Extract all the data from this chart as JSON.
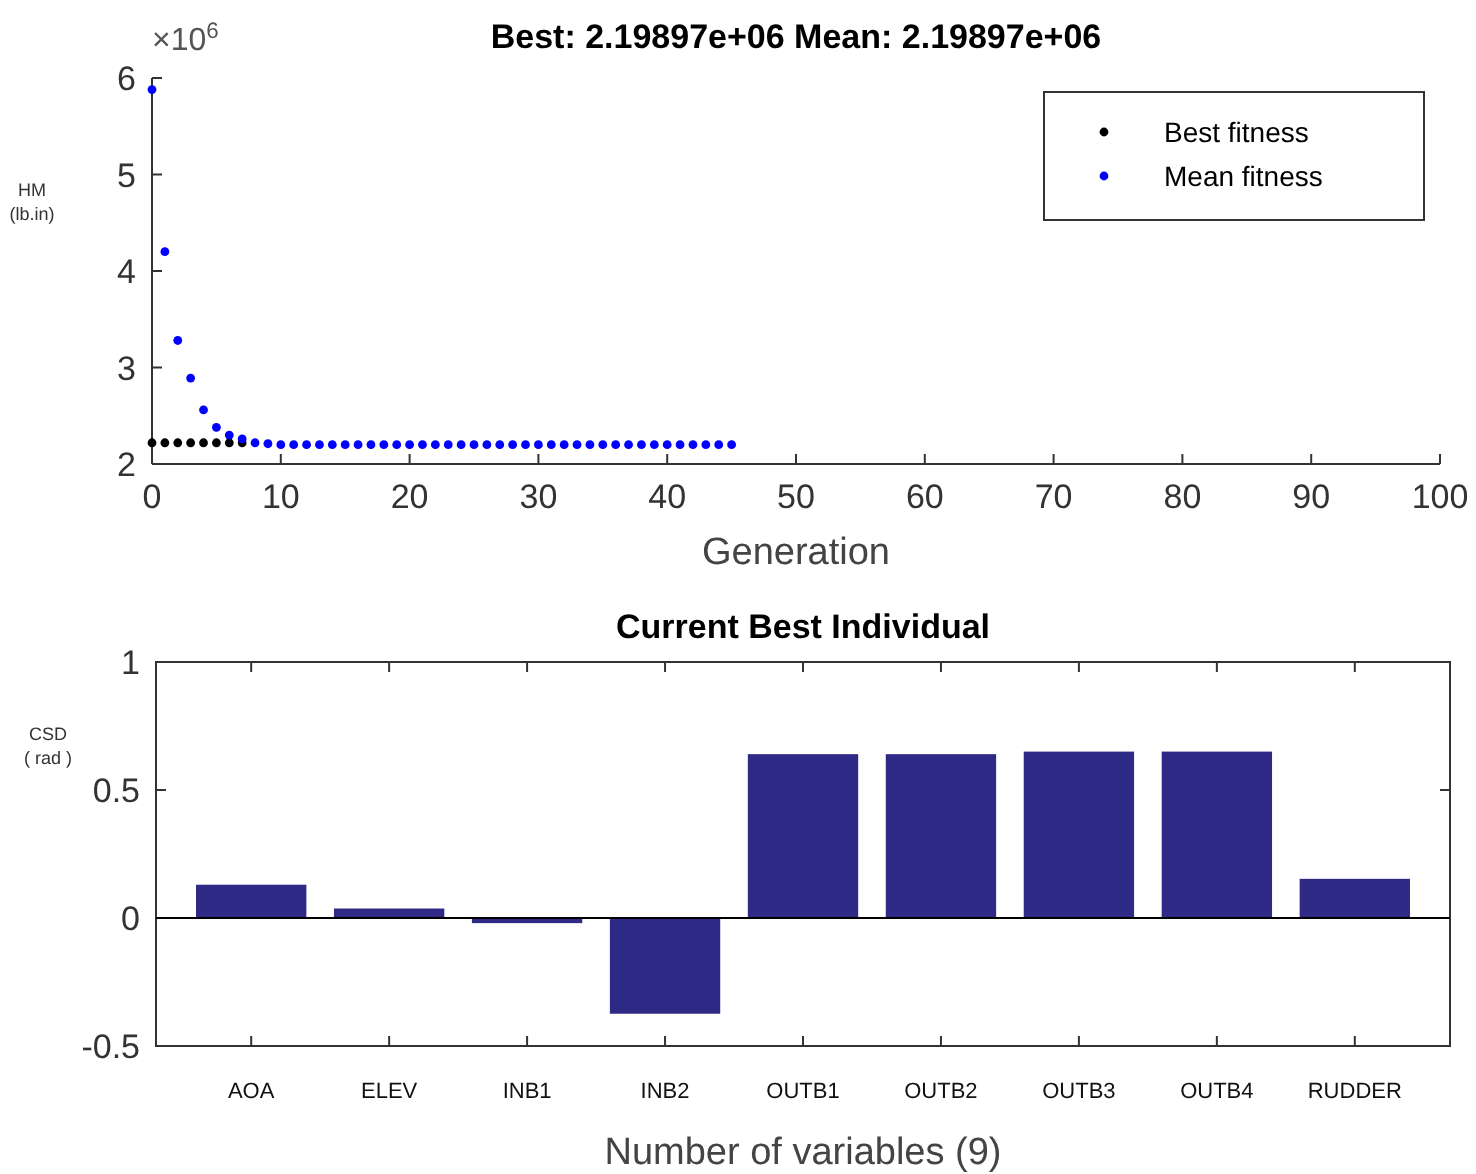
{
  "chart_data": [
    {
      "type": "scatter",
      "title": "Best: 2.19897e+06 Mean: 2.19897e+06",
      "xlabel": "Generation",
      "ylabel": "HM\n(lb.in)",
      "annotations": [
        "×10$^{6}$"
      ],
      "xlim": [
        0,
        100
      ],
      "xticks": [
        0,
        10,
        20,
        30,
        40,
        50,
        60,
        70,
        80,
        90,
        100
      ],
      "ylim": [
        2,
        6
      ],
      "yticks": [
        2,
        3,
        4,
        5,
        6
      ],
      "marker": "circle",
      "legend": "top right",
      "grid": false,
      "series": [
        {
          "name": "Best fitness",
          "color": "#000000",
          "x": [
            0,
            1,
            2,
            3,
            4,
            5,
            6,
            7
          ],
          "values": [
            2.22,
            2.22,
            2.22,
            2.22,
            2.22,
            2.22,
            2.22,
            2.22
          ]
        },
        {
          "name": "Mean fitness",
          "color": "#0000ff",
          "x": [
            0,
            1,
            2,
            3,
            4,
            5,
            6,
            7,
            8,
            9,
            10,
            11,
            12,
            13,
            14,
            15,
            16,
            17,
            18,
            19,
            20,
            21,
            22,
            23,
            24,
            25,
            26,
            27,
            28,
            29,
            30,
            31,
            32,
            33,
            34,
            35,
            36,
            37,
            38,
            39,
            40,
            41,
            42,
            43,
            44,
            45
          ],
          "values": [
            5.88,
            4.2,
            3.28,
            2.89,
            2.56,
            2.38,
            2.3,
            2.26,
            2.22,
            2.21,
            2.2,
            2.2,
            2.2,
            2.2,
            2.2,
            2.2,
            2.2,
            2.2,
            2.2,
            2.2,
            2.2,
            2.2,
            2.2,
            2.2,
            2.2,
            2.2,
            2.2,
            2.2,
            2.2,
            2.2,
            2.2,
            2.2,
            2.2,
            2.2,
            2.2,
            2.2,
            2.2,
            2.2,
            2.2,
            2.2,
            2.2,
            2.2,
            2.2,
            2.2,
            2.2,
            2.2
          ]
        }
      ]
    },
    {
      "type": "bar",
      "title": "Current Best Individual",
      "xlabel": "Number of variables (9)",
      "ylabel": "CSD\n( rad )",
      "categories": [
        "AOA",
        "ELEV",
        "INB1",
        "INB2",
        "OUTB1",
        "OUTB2",
        "OUTB3",
        "OUTB4",
        "RUDDER"
      ],
      "values": [
        0.13,
        0.037,
        -0.02,
        -0.374,
        0.64,
        0.64,
        0.65,
        0.65,
        0.153
      ],
      "color": "#2e2a85",
      "ylim": [
        -0.5,
        1
      ],
      "yticks": [
        -0.5,
        0,
        0.5,
        1
      ],
      "grid": false,
      "ref_lines": [
        {
          "axis": "y",
          "value": 0,
          "color": "#000000"
        }
      ]
    }
  ]
}
